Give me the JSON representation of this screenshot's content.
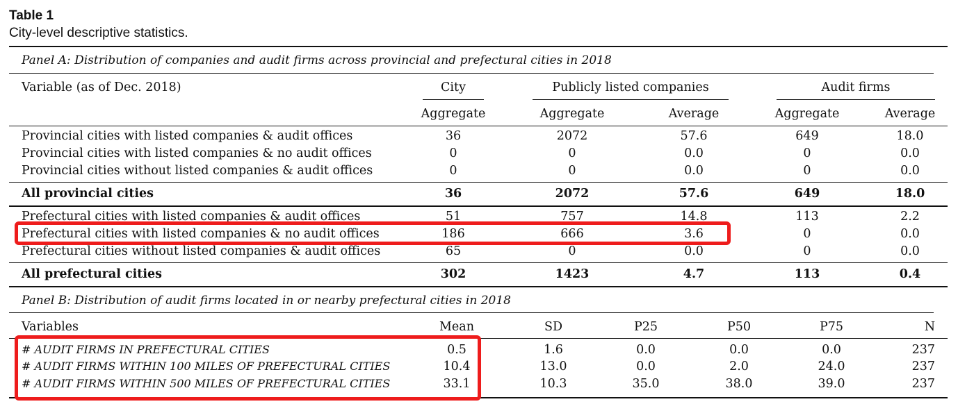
{
  "caption": {
    "label": "Table 1",
    "description": "City-level descriptive statistics."
  },
  "panel_a": {
    "title": "Panel A: Distribution of companies and audit firms across provincial and prefectural cities in 2018",
    "header": {
      "variable": "Variable (as of Dec. 2018)",
      "group_city": "City",
      "group_companies": "Publicly listed companies",
      "group_audit": "Audit firms",
      "sub": [
        "Aggregate",
        "Aggregate",
        "Average",
        "Aggregate",
        "Average"
      ]
    },
    "rows": [
      {
        "label": "Provincial cities with listed companies & audit offices",
        "values": [
          "36",
          "2072",
          "57.6",
          "649",
          "18.0"
        ]
      },
      {
        "label": "Provincial cities with listed companies & no audit offices",
        "values": [
          "0",
          "0",
          "0.0",
          "0",
          "0.0"
        ]
      },
      {
        "label": "Provincial cities without listed companies & audit offices",
        "values": [
          "0",
          "0",
          "0.0",
          "0",
          "0.0"
        ]
      },
      {
        "label": "All provincial cities",
        "values": [
          "36",
          "2072",
          "57.6",
          "649",
          "18.0"
        ]
      },
      {
        "label": "Prefectural cities with listed companies & audit offices",
        "values": [
          "51",
          "757",
          "14.8",
          "113",
          "2.2"
        ]
      },
      {
        "label": "Prefectural cities with listed companies & no audit offices",
        "values": [
          "186",
          "666",
          "3.6",
          "0",
          "0.0"
        ]
      },
      {
        "label": "Prefectural cities without listed companies & audit offices",
        "values": [
          "65",
          "0",
          "0.0",
          "0",
          "0.0"
        ]
      },
      {
        "label": "All prefectural cities",
        "values": [
          "302",
          "1423",
          "4.7",
          "113",
          "0.4"
        ]
      }
    ]
  },
  "panel_b": {
    "title": "Panel B: Distribution of audit firms located in or nearby prefectural cities in 2018",
    "header": [
      "Variables",
      "Mean",
      "SD",
      "P25",
      "P50",
      "P75",
      "N"
    ],
    "rows": [
      {
        "label": "# AUDIT FIRMS IN PREFECTURAL CITIES",
        "values": [
          "0.5",
          "1.6",
          "0.0",
          "0.0",
          "0.0",
          "237"
        ]
      },
      {
        "label": "# AUDIT FIRMS WITHIN 100 MILES OF PREFECTURAL CITIES",
        "values": [
          "10.4",
          "13.0",
          "0.0",
          "2.0",
          "24.0",
          "237"
        ]
      },
      {
        "label": "# AUDIT FIRMS WITHIN 500 MILES OF PREFECTURAL CITIES",
        "values": [
          "33.1",
          "10.3",
          "35.0",
          "38.0",
          "39.0",
          "237"
        ]
      }
    ]
  },
  "colors": {
    "highlight": "#ee1c1c",
    "text": "#111111"
  }
}
